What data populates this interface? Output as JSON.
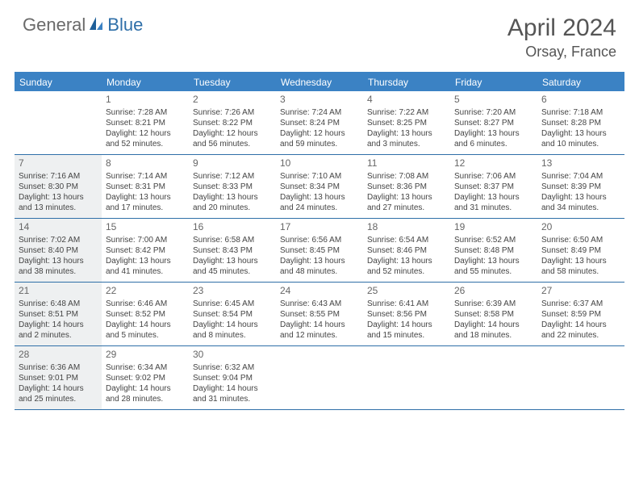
{
  "logo": {
    "part1": "General",
    "part2": "Blue"
  },
  "title": "April 2024",
  "location": "Orsay, France",
  "daynames": [
    "Sunday",
    "Monday",
    "Tuesday",
    "Wednesday",
    "Thursday",
    "Friday",
    "Saturday"
  ],
  "colors": {
    "header_bar": "#3b82c4",
    "rule": "#2f6fa8",
    "shaded": "#eef0f1",
    "text": "#444444",
    "logo_gray": "#6a6a6a",
    "logo_blue": "#2f6fa8"
  },
  "weeks": [
    [
      {
        "num": "",
        "sunrise": "",
        "sunset": "",
        "daylight1": "",
        "daylight2": "",
        "shaded": false
      },
      {
        "num": "1",
        "sunrise": "Sunrise: 7:28 AM",
        "sunset": "Sunset: 8:21 PM",
        "daylight1": "Daylight: 12 hours",
        "daylight2": "and 52 minutes.",
        "shaded": false
      },
      {
        "num": "2",
        "sunrise": "Sunrise: 7:26 AM",
        "sunset": "Sunset: 8:22 PM",
        "daylight1": "Daylight: 12 hours",
        "daylight2": "and 56 minutes.",
        "shaded": false
      },
      {
        "num": "3",
        "sunrise": "Sunrise: 7:24 AM",
        "sunset": "Sunset: 8:24 PM",
        "daylight1": "Daylight: 12 hours",
        "daylight2": "and 59 minutes.",
        "shaded": false
      },
      {
        "num": "4",
        "sunrise": "Sunrise: 7:22 AM",
        "sunset": "Sunset: 8:25 PM",
        "daylight1": "Daylight: 13 hours",
        "daylight2": "and 3 minutes.",
        "shaded": false
      },
      {
        "num": "5",
        "sunrise": "Sunrise: 7:20 AM",
        "sunset": "Sunset: 8:27 PM",
        "daylight1": "Daylight: 13 hours",
        "daylight2": "and 6 minutes.",
        "shaded": false
      },
      {
        "num": "6",
        "sunrise": "Sunrise: 7:18 AM",
        "sunset": "Sunset: 8:28 PM",
        "daylight1": "Daylight: 13 hours",
        "daylight2": "and 10 minutes.",
        "shaded": false
      }
    ],
    [
      {
        "num": "7",
        "sunrise": "Sunrise: 7:16 AM",
        "sunset": "Sunset: 8:30 PM",
        "daylight1": "Daylight: 13 hours",
        "daylight2": "and 13 minutes.",
        "shaded": true
      },
      {
        "num": "8",
        "sunrise": "Sunrise: 7:14 AM",
        "sunset": "Sunset: 8:31 PM",
        "daylight1": "Daylight: 13 hours",
        "daylight2": "and 17 minutes.",
        "shaded": false
      },
      {
        "num": "9",
        "sunrise": "Sunrise: 7:12 AM",
        "sunset": "Sunset: 8:33 PM",
        "daylight1": "Daylight: 13 hours",
        "daylight2": "and 20 minutes.",
        "shaded": false
      },
      {
        "num": "10",
        "sunrise": "Sunrise: 7:10 AM",
        "sunset": "Sunset: 8:34 PM",
        "daylight1": "Daylight: 13 hours",
        "daylight2": "and 24 minutes.",
        "shaded": false
      },
      {
        "num": "11",
        "sunrise": "Sunrise: 7:08 AM",
        "sunset": "Sunset: 8:36 PM",
        "daylight1": "Daylight: 13 hours",
        "daylight2": "and 27 minutes.",
        "shaded": false
      },
      {
        "num": "12",
        "sunrise": "Sunrise: 7:06 AM",
        "sunset": "Sunset: 8:37 PM",
        "daylight1": "Daylight: 13 hours",
        "daylight2": "and 31 minutes.",
        "shaded": false
      },
      {
        "num": "13",
        "sunrise": "Sunrise: 7:04 AM",
        "sunset": "Sunset: 8:39 PM",
        "daylight1": "Daylight: 13 hours",
        "daylight2": "and 34 minutes.",
        "shaded": false
      }
    ],
    [
      {
        "num": "14",
        "sunrise": "Sunrise: 7:02 AM",
        "sunset": "Sunset: 8:40 PM",
        "daylight1": "Daylight: 13 hours",
        "daylight2": "and 38 minutes.",
        "shaded": true
      },
      {
        "num": "15",
        "sunrise": "Sunrise: 7:00 AM",
        "sunset": "Sunset: 8:42 PM",
        "daylight1": "Daylight: 13 hours",
        "daylight2": "and 41 minutes.",
        "shaded": false
      },
      {
        "num": "16",
        "sunrise": "Sunrise: 6:58 AM",
        "sunset": "Sunset: 8:43 PM",
        "daylight1": "Daylight: 13 hours",
        "daylight2": "and 45 minutes.",
        "shaded": false
      },
      {
        "num": "17",
        "sunrise": "Sunrise: 6:56 AM",
        "sunset": "Sunset: 8:45 PM",
        "daylight1": "Daylight: 13 hours",
        "daylight2": "and 48 minutes.",
        "shaded": false
      },
      {
        "num": "18",
        "sunrise": "Sunrise: 6:54 AM",
        "sunset": "Sunset: 8:46 PM",
        "daylight1": "Daylight: 13 hours",
        "daylight2": "and 52 minutes.",
        "shaded": false
      },
      {
        "num": "19",
        "sunrise": "Sunrise: 6:52 AM",
        "sunset": "Sunset: 8:48 PM",
        "daylight1": "Daylight: 13 hours",
        "daylight2": "and 55 minutes.",
        "shaded": false
      },
      {
        "num": "20",
        "sunrise": "Sunrise: 6:50 AM",
        "sunset": "Sunset: 8:49 PM",
        "daylight1": "Daylight: 13 hours",
        "daylight2": "and 58 minutes.",
        "shaded": false
      }
    ],
    [
      {
        "num": "21",
        "sunrise": "Sunrise: 6:48 AM",
        "sunset": "Sunset: 8:51 PM",
        "daylight1": "Daylight: 14 hours",
        "daylight2": "and 2 minutes.",
        "shaded": true
      },
      {
        "num": "22",
        "sunrise": "Sunrise: 6:46 AM",
        "sunset": "Sunset: 8:52 PM",
        "daylight1": "Daylight: 14 hours",
        "daylight2": "and 5 minutes.",
        "shaded": false
      },
      {
        "num": "23",
        "sunrise": "Sunrise: 6:45 AM",
        "sunset": "Sunset: 8:54 PM",
        "daylight1": "Daylight: 14 hours",
        "daylight2": "and 8 minutes.",
        "shaded": false
      },
      {
        "num": "24",
        "sunrise": "Sunrise: 6:43 AM",
        "sunset": "Sunset: 8:55 PM",
        "daylight1": "Daylight: 14 hours",
        "daylight2": "and 12 minutes.",
        "shaded": false
      },
      {
        "num": "25",
        "sunrise": "Sunrise: 6:41 AM",
        "sunset": "Sunset: 8:56 PM",
        "daylight1": "Daylight: 14 hours",
        "daylight2": "and 15 minutes.",
        "shaded": false
      },
      {
        "num": "26",
        "sunrise": "Sunrise: 6:39 AM",
        "sunset": "Sunset: 8:58 PM",
        "daylight1": "Daylight: 14 hours",
        "daylight2": "and 18 minutes.",
        "shaded": false
      },
      {
        "num": "27",
        "sunrise": "Sunrise: 6:37 AM",
        "sunset": "Sunset: 8:59 PM",
        "daylight1": "Daylight: 14 hours",
        "daylight2": "and 22 minutes.",
        "shaded": false
      }
    ],
    [
      {
        "num": "28",
        "sunrise": "Sunrise: 6:36 AM",
        "sunset": "Sunset: 9:01 PM",
        "daylight1": "Daylight: 14 hours",
        "daylight2": "and 25 minutes.",
        "shaded": true
      },
      {
        "num": "29",
        "sunrise": "Sunrise: 6:34 AM",
        "sunset": "Sunset: 9:02 PM",
        "daylight1": "Daylight: 14 hours",
        "daylight2": "and 28 minutes.",
        "shaded": false
      },
      {
        "num": "30",
        "sunrise": "Sunrise: 6:32 AM",
        "sunset": "Sunset: 9:04 PM",
        "daylight1": "Daylight: 14 hours",
        "daylight2": "and 31 minutes.",
        "shaded": false
      },
      {
        "num": "",
        "sunrise": "",
        "sunset": "",
        "daylight1": "",
        "daylight2": "",
        "shaded": false
      },
      {
        "num": "",
        "sunrise": "",
        "sunset": "",
        "daylight1": "",
        "daylight2": "",
        "shaded": false
      },
      {
        "num": "",
        "sunrise": "",
        "sunset": "",
        "daylight1": "",
        "daylight2": "",
        "shaded": false
      },
      {
        "num": "",
        "sunrise": "",
        "sunset": "",
        "daylight1": "",
        "daylight2": "",
        "shaded": false
      }
    ]
  ]
}
